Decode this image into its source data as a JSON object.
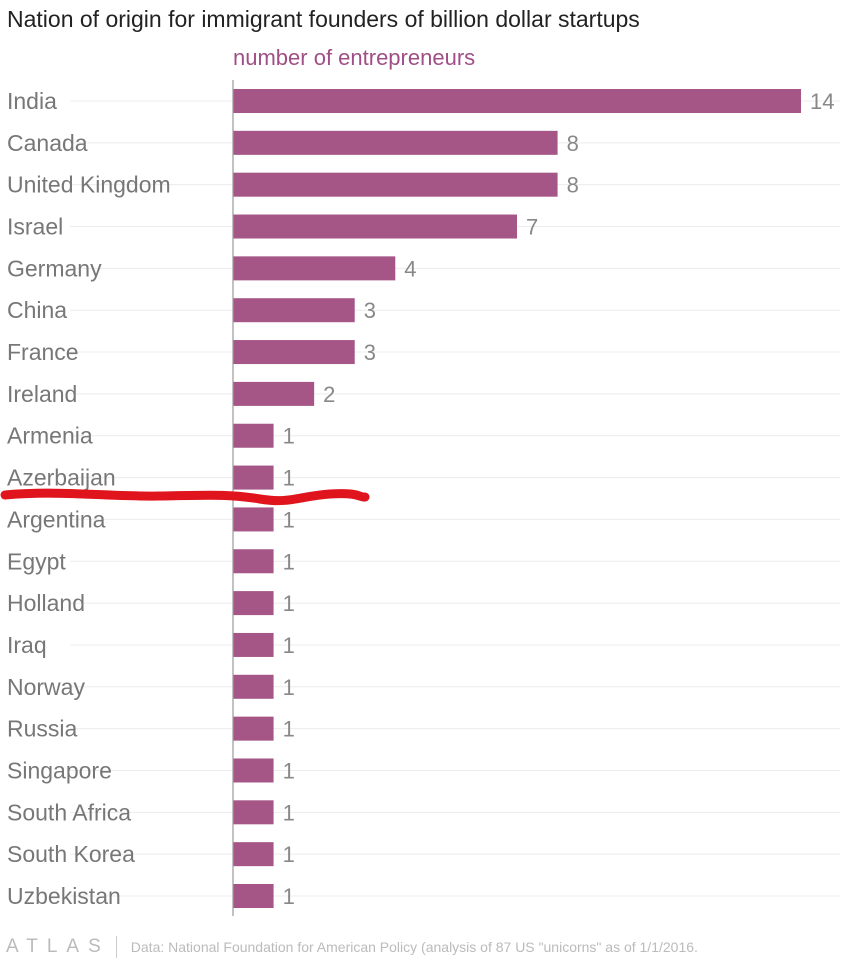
{
  "chart_data": {
    "type": "bar",
    "title": "Nation of origin for immigrant founders of billion dollar startups",
    "subtitle": "number of entrepreneurs",
    "categories": [
      "India",
      "Canada",
      "United Kingdom",
      "Israel",
      "Germany",
      "China",
      "France",
      "Ireland",
      "Armenia",
      "Azerbaijan",
      "Argentina",
      "Egypt",
      "Holland",
      "Iraq",
      "Norway",
      "Russia",
      "Singapore",
      "South Africa",
      "South Korea",
      "Uzbekistan"
    ],
    "values": [
      14,
      8,
      8,
      7,
      4,
      3,
      3,
      2,
      1,
      1,
      1,
      1,
      1,
      1,
      1,
      1,
      1,
      1,
      1,
      1
    ],
    "xlim": [
      0,
      14
    ],
    "bar_color": "#a55586",
    "annotation_color": "#e0141c"
  },
  "footer": {
    "logo": "ATLAS",
    "source": "Data: National Foundation for American Policy (analysis of 87 US \"unicorns\" as of 1/1/2016."
  }
}
